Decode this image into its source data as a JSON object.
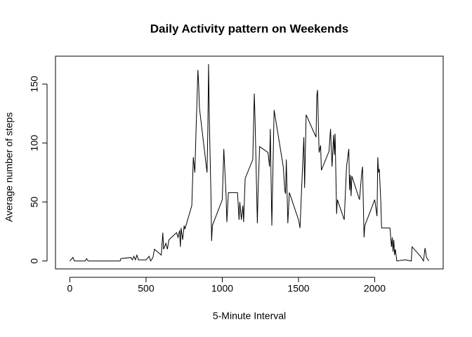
{
  "chart_data": {
    "type": "line",
    "title": "Daily Activity pattern on Weekends",
    "xlabel": "5-Minute Interval",
    "ylabel": "Average number of steps",
    "x": [
      0,
      20,
      30,
      100,
      110,
      120,
      330,
      335,
      400,
      410,
      420,
      430,
      440,
      450,
      500,
      520,
      530,
      545,
      555,
      600,
      610,
      615,
      630,
      640,
      650,
      700,
      710,
      720,
      725,
      730,
      740,
      750,
      755,
      800,
      810,
      820,
      830,
      835,
      840,
      845,
      850,
      900,
      905,
      910,
      915,
      925,
      930,
      935,
      1000,
      1010,
      1025,
      1030,
      1040,
      1100,
      1110,
      1115,
      1125,
      1135,
      1140,
      1150,
      1200,
      1210,
      1215,
      1230,
      1235,
      1245,
      1300,
      1310,
      1315,
      1320,
      1325,
      1340,
      1400,
      1410,
      1415,
      1420,
      1430,
      1440,
      1500,
      1510,
      1520,
      1535,
      1540,
      1550,
      1615,
      1620,
      1625,
      1635,
      1645,
      1650,
      1700,
      1710,
      1715,
      1720,
      1730,
      1735,
      1740,
      1750,
      1755,
      1800,
      1815,
      1830,
      1835,
      1840,
      1845,
      1850,
      1900,
      1915,
      1920,
      1930,
      1935,
      2000,
      2015,
      2020,
      2025,
      2030,
      2040,
      2045,
      2100,
      2110,
      2115,
      2120,
      2125,
      2130,
      2135,
      2145,
      2200,
      2240,
      2245,
      2300,
      2320,
      2330,
      2340,
      2355
    ],
    "series": [
      {
        "name": "steps",
        "color": "#000000",
        "values": [
          0,
          3,
          0,
          0,
          2,
          0,
          0,
          2,
          3,
          1,
          4,
          1,
          5,
          1,
          1,
          4,
          0,
          3,
          10,
          5,
          24,
          10,
          15,
          10,
          18,
          24,
          20,
          26,
          12,
          28,
          18,
          30,
          27,
          47,
          88,
          75,
          120,
          140,
          162,
          150,
          130,
          75,
          110,
          167,
          120,
          60,
          17,
          30,
          52,
          95,
          55,
          33,
          58,
          58,
          35,
          50,
          35,
          47,
          33,
          70,
          86,
          142,
          120,
          32,
          60,
          97,
          92,
          80,
          112,
          70,
          30,
          128,
          80,
          60,
          57,
          86,
          32,
          58,
          35,
          28,
          60,
          105,
          62,
          124,
          105,
          140,
          145,
          92,
          98,
          77,
          93,
          112,
          95,
          80,
          107,
          90,
          108,
          40,
          52,
          35,
          80,
          95,
          60,
          73,
          55,
          72,
          52,
          75,
          80,
          20,
          30,
          52,
          38,
          88,
          75,
          78,
          50,
          28,
          28,
          12,
          20,
          8,
          18,
          5,
          10,
          0,
          1,
          0,
          12,
          4,
          0,
          11,
          3,
          0
        ]
      }
    ],
    "xlim": [
      -94.2,
      2449.2
    ],
    "ylim": [
      -6.7,
      173.7
    ],
    "xticks": [
      0,
      500,
      1000,
      1500,
      2000
    ],
    "yticks": [
      0,
      50,
      100,
      150
    ]
  }
}
